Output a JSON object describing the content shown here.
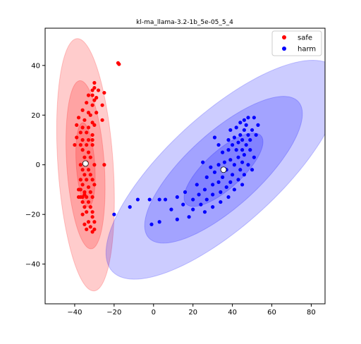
{
  "chart_data": {
    "type": "scatter",
    "title": "kl-ma_llama-3.2-1b_5e-05_5_4",
    "xlabel": "",
    "ylabel": "",
    "xlim": [
      -55,
      87
    ],
    "ylim": [
      -56,
      55
    ],
    "xticks": [
      -40,
      -20,
      0,
      20,
      40,
      60,
      80
    ],
    "yticks": [
      -40,
      -20,
      0,
      20,
      40
    ],
    "grid": false,
    "legend_position": "top-right",
    "series": [
      {
        "name": "safe",
        "color": "#ff0000",
        "mean": [
          -34.5,
          0.5
        ],
        "ellipses": [
          {
            "center": [
              -34.5,
              0
            ],
            "semi_major": 51,
            "semi_minor": 14,
            "angle_deg": 95,
            "opacity": 0.2
          },
          {
            "center": [
              -34.5,
              0
            ],
            "semi_major": 34,
            "semi_minor": 9.5,
            "angle_deg": 95,
            "opacity": 0.2
          },
          {
            "center": [
              -34.5,
              0
            ],
            "semi_major": 17,
            "semi_minor": 4.7,
            "angle_deg": 95,
            "opacity": 0.2
          }
        ],
        "points": [
          [
            -18,
            41
          ],
          [
            -17.5,
            40.5
          ],
          [
            -30,
            33
          ],
          [
            -30,
            31
          ],
          [
            -31,
            30
          ],
          [
            -28,
            30
          ],
          [
            -25,
            29
          ],
          [
            -31,
            28
          ],
          [
            -33,
            28
          ],
          [
            -29,
            27
          ],
          [
            -30,
            26
          ],
          [
            -34,
            25
          ],
          [
            -31,
            24
          ],
          [
            -26,
            24
          ],
          [
            -36,
            22
          ],
          [
            -33,
            21
          ],
          [
            -29,
            21
          ],
          [
            -32,
            20
          ],
          [
            -38,
            19
          ],
          [
            -35,
            18
          ],
          [
            -31,
            17
          ],
          [
            -26,
            18
          ],
          [
            -39,
            16
          ],
          [
            -36,
            15
          ],
          [
            -33,
            15
          ],
          [
            -30,
            16
          ],
          [
            -37,
            13
          ],
          [
            -34,
            13
          ],
          [
            -31,
            12
          ],
          [
            -39,
            11
          ],
          [
            -36,
            10
          ],
          [
            -33,
            10
          ],
          [
            -31,
            10
          ],
          [
            -40,
            8
          ],
          [
            -37,
            8
          ],
          [
            -34,
            8
          ],
          [
            -31,
            8
          ],
          [
            -36,
            6
          ],
          [
            -33,
            5
          ],
          [
            -35,
            3
          ],
          [
            -32,
            3
          ],
          [
            -34,
            1
          ],
          [
            -30,
            0
          ],
          [
            -37,
            0
          ],
          [
            -25,
            0
          ],
          [
            -36,
            -2
          ],
          [
            -33,
            -2
          ],
          [
            -35,
            -4
          ],
          [
            -32,
            -4
          ],
          [
            -37,
            -6
          ],
          [
            -34,
            -6
          ],
          [
            -31,
            -6
          ],
          [
            -36,
            -8
          ],
          [
            -33,
            -9
          ],
          [
            -30,
            -8
          ],
          [
            -37,
            -10
          ],
          [
            -35,
            -11
          ],
          [
            -32,
            -11
          ],
          [
            -36,
            -13
          ],
          [
            -34,
            -13
          ],
          [
            -31,
            -13
          ],
          [
            -38,
            -13
          ],
          [
            -36,
            -15
          ],
          [
            -33,
            -15
          ],
          [
            -35,
            -17
          ],
          [
            -32,
            -17
          ],
          [
            -34,
            -19
          ],
          [
            -31,
            -19
          ],
          [
            -36,
            -20
          ],
          [
            -31,
            -21
          ],
          [
            -33,
            -23
          ],
          [
            -30,
            -23
          ],
          [
            -35,
            -24
          ],
          [
            -32,
            -25
          ],
          [
            -34,
            -26
          ],
          [
            -30,
            -26
          ],
          [
            -31,
            -27
          ],
          [
            -37,
            -13
          ],
          [
            -38,
            -10
          ],
          [
            -35,
            -12
          ]
        ]
      },
      {
        "name": "harm",
        "color": "#0000ff",
        "mean": [
          35.5,
          -2
        ],
        "ellipses": [
          {
            "center": [
              35.5,
              -2
            ],
            "semi_major": 70,
            "semi_minor": 24.5,
            "angle_deg": 34,
            "opacity": 0.2
          },
          {
            "center": [
              35.5,
              -2
            ],
            "semi_major": 47,
            "semi_minor": 16.3,
            "angle_deg": 34,
            "opacity": 0.2
          },
          {
            "center": [
              35.5,
              -2
            ],
            "semi_major": 23.5,
            "semi_minor": 8.2,
            "angle_deg": 34,
            "opacity": 0.2
          }
        ],
        "points": [
          [
            48,
            19
          ],
          [
            46,
            18
          ],
          [
            51,
            19
          ],
          [
            44,
            17
          ],
          [
            47,
            16
          ],
          [
            53,
            16
          ],
          [
            42,
            15
          ],
          [
            46,
            14
          ],
          [
            50,
            14
          ],
          [
            39,
            14
          ],
          [
            44,
            12
          ],
          [
            48,
            12
          ],
          [
            52,
            12
          ],
          [
            41,
            11
          ],
          [
            45,
            10
          ],
          [
            49,
            10
          ],
          [
            38,
            10
          ],
          [
            43,
            9
          ],
          [
            47,
            8
          ],
          [
            40,
            8
          ],
          [
            33,
            8
          ],
          [
            31,
            11
          ],
          [
            45,
            6
          ],
          [
            49,
            6
          ],
          [
            42,
            6
          ],
          [
            38,
            6
          ],
          [
            35,
            5
          ],
          [
            46,
            4
          ],
          [
            43,
            3
          ],
          [
            51,
            3
          ],
          [
            39,
            2
          ],
          [
            36,
            1
          ],
          [
            45,
            1
          ],
          [
            25,
            1
          ],
          [
            33,
            0
          ],
          [
            41,
            0
          ],
          [
            48,
            0
          ],
          [
            29,
            -1
          ],
          [
            37,
            -2
          ],
          [
            44,
            -2
          ],
          [
            50,
            -2
          ],
          [
            31,
            -3
          ],
          [
            40,
            -4
          ],
          [
            46,
            -4
          ],
          [
            27,
            -5
          ],
          [
            35,
            -5
          ],
          [
            43,
            -6
          ],
          [
            33,
            -7
          ],
          [
            39,
            -7
          ],
          [
            22,
            -8
          ],
          [
            30,
            -8
          ],
          [
            37,
            -9
          ],
          [
            45,
            -8
          ],
          [
            26,
            -10
          ],
          [
            41,
            -10
          ],
          [
            16,
            -11
          ],
          [
            34,
            -11
          ],
          [
            23,
            -12
          ],
          [
            30,
            -12
          ],
          [
            38,
            -13
          ],
          [
            12,
            -13
          ],
          [
            20,
            -14
          ],
          [
            27,
            -14
          ],
          [
            6,
            -14
          ],
          [
            34,
            -15
          ],
          [
            15,
            -16
          ],
          [
            24,
            -16
          ],
          [
            30,
            -17
          ],
          [
            20,
            -18
          ],
          [
            9,
            -18
          ],
          [
            26,
            -19
          ],
          [
            18,
            -21
          ],
          [
            12,
            -22
          ],
          [
            -2,
            -14
          ],
          [
            3,
            -14
          ],
          [
            -8,
            -14
          ],
          [
            -12,
            -17
          ],
          [
            -20,
            -20
          ],
          [
            -1,
            -24
          ],
          [
            3,
            -23
          ]
        ]
      }
    ]
  }
}
